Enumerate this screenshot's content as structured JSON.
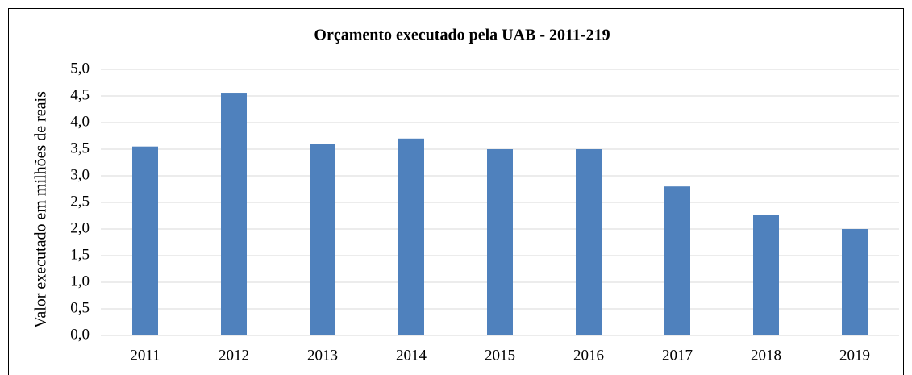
{
  "chart_data": {
    "type": "bar",
    "title": "Orçamento executado pela UAB - 2011-219",
    "y_label": "Valor executado em milhões de reais",
    "categories": [
      "2011",
      "2012",
      "2013",
      "2014",
      "2015",
      "2016",
      "2017",
      "2018",
      "2019"
    ],
    "values": [
      3.55,
      4.56,
      3.6,
      3.7,
      3.5,
      3.5,
      2.8,
      2.27,
      2.0
    ],
    "color": "#4f81bd",
    "ylim": [
      0,
      5
    ],
    "yticks": [
      {
        "value": 0,
        "label": "0,0"
      },
      {
        "value": 0.5,
        "label": "0,5"
      },
      {
        "value": 1,
        "label": "1,0"
      },
      {
        "value": 1.5,
        "label": "1,5"
      },
      {
        "value": 2,
        "label": "2,0"
      },
      {
        "value": 2.5,
        "label": "2,5"
      },
      {
        "value": 3,
        "label": "3,0"
      },
      {
        "value": 3.5,
        "label": "3,5"
      },
      {
        "value": 4,
        "label": "4,0"
      },
      {
        "value": 4.5,
        "label": "4,5"
      },
      {
        "value": 5,
        "label": "5,0"
      }
    ],
    "grid": true
  }
}
